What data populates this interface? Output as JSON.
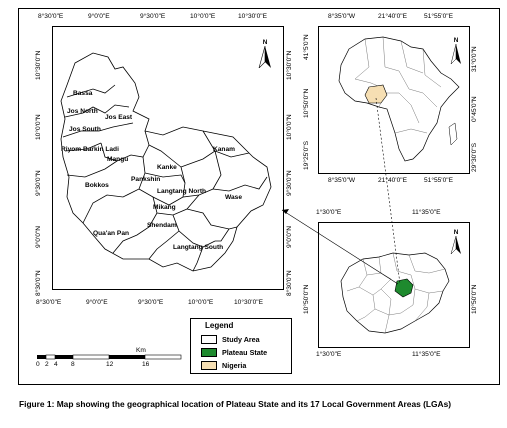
{
  "main_map": {
    "top_coords": [
      "8°30'0\"E",
      "9°0'0\"E",
      "9°30'0\"E",
      "10°0'0\"E",
      "10°30'0\"E"
    ],
    "bottom_coords": [
      "8°30'0\"E",
      "9°0'0\"E",
      "9°30'0\"E",
      "10°0'0\"E",
      "10°30'0\"E"
    ],
    "left_coords": [
      "10°30'0\"N",
      "10°0'0\"N",
      "9°30'0\"N",
      "9°0'0\"N",
      "8°30'0\"N"
    ],
    "right_coords": [
      "10°30'0\"N",
      "10°0'0\"N",
      "9°30'0\"N",
      "9°0'0\"N",
      "8°30'0\"N"
    ],
    "lga_labels": [
      "Bassa",
      "Jos North",
      "Jos East",
      "Jos South",
      "Riyom",
      "Barkin Ladi",
      "Mangu",
      "Kanke",
      "Kanam",
      "Pankshin",
      "Bokkos",
      "Langtang North",
      "Wase",
      "Mikang",
      "Shendam",
      "Qua'an Pan",
      "Langtang South"
    ],
    "north_label": "N"
  },
  "africa_map": {
    "top_coords": [
      "41°5'0\"N",
      "8°35'0\"W",
      "21°40'0\"E",
      "51°55'0\"E"
    ],
    "left_coords": [
      "41°5'0\"N",
      "10°50'0\"N",
      "19°25'0\"S"
    ],
    "right_coords": [
      "31°0'0\"N",
      "0°45'0\"N",
      "29°30'0\"S"
    ],
    "bottom_coords": [
      "8°35'0\"W",
      "21°40'0\"E",
      "51°55'0\"E"
    ],
    "highlight_label": "Nigeria",
    "north_label": "N"
  },
  "nigeria_map": {
    "top_coords": [
      "1°30'0\"E",
      "11°35'0\"E"
    ],
    "bottom_coords": [
      "1°30'0\"E",
      "11°35'0\"E"
    ],
    "left_coords": [
      "10°50'0\"N"
    ],
    "right_coords": [
      "10°50'0\"N"
    ],
    "north_label": "N"
  },
  "legend": {
    "title": "Legend",
    "items": [
      {
        "label": "Study Area",
        "color": "#ffffff"
      },
      {
        "label": "Plateau State",
        "color": "#1e8a2e"
      },
      {
        "label": "Nigeria",
        "color": "#f6dfb3"
      }
    ]
  },
  "scale_bar": {
    "unit": "Km",
    "ticks": [
      "0",
      "2",
      "4",
      "8",
      "12",
      "16"
    ]
  },
  "caption": "Figure 1: Map showing the geographical location of Plateau State and its 17 Local Government Areas (LGAs)",
  "colors": {
    "plateau": "#1e8a2e",
    "nigeria": "#f6dfb3",
    "outline": "#000000"
  }
}
